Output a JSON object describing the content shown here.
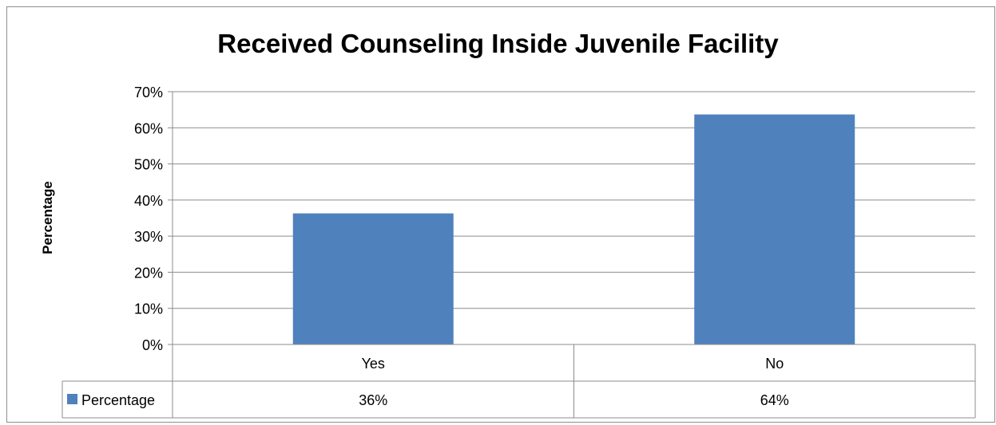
{
  "chart_data": {
    "type": "bar",
    "title": "Received Counseling Inside Juvenile Facility",
    "ylabel": "Percentage",
    "xlabel": "",
    "categories": [
      "Yes",
      "No"
    ],
    "series": [
      {
        "name": "Percentage",
        "values": [
          36.3,
          63.7
        ],
        "color": "#4f81bd"
      }
    ],
    "ylim": [
      0,
      70
    ],
    "yticks": [
      0,
      10,
      20,
      30,
      40,
      50,
      60,
      70
    ],
    "ytick_labels": [
      "0%",
      "10%",
      "20%",
      "30%",
      "40%",
      "50%",
      "60%",
      "70%"
    ],
    "grid": true,
    "legend_placement": "data-table-left",
    "data_table": {
      "rows": [
        {
          "series": "Percentage",
          "cells": [
            "36%",
            "64%"
          ]
        }
      ]
    }
  }
}
